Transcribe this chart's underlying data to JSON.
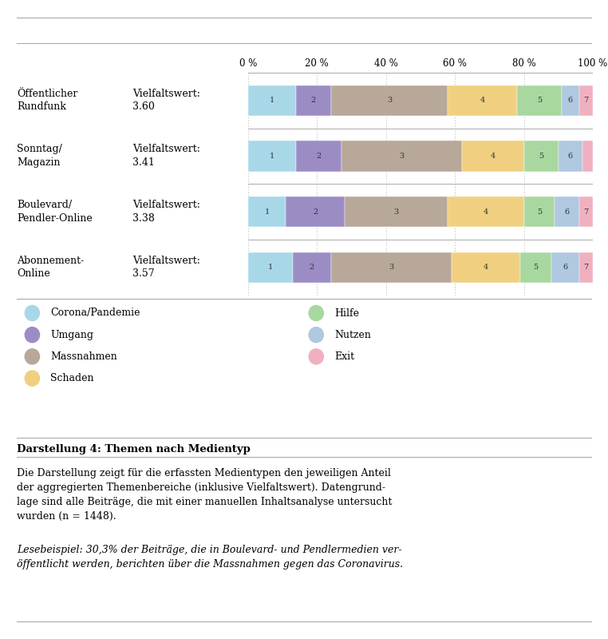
{
  "categories": [
    [
      "Öffentlicher",
      "Rundfunk",
      "Vielfaltswert:",
      "3.60"
    ],
    [
      "Sonntag/",
      "Magazin",
      "Vielfaltswert:",
      "3.41"
    ],
    [
      "Boulevard/",
      "Pendler-Online",
      "Vielfaltswert:",
      "3.38"
    ],
    [
      "Abonnement-",
      "Online",
      "Vielfaltswert:",
      "3.57"
    ]
  ],
  "segments": [
    [
      14.0,
      10.0,
      34.0,
      20.0,
      13.0,
      5.0,
      4.0
    ],
    [
      14.0,
      13.0,
      35.0,
      18.0,
      10.0,
      7.0,
      3.0
    ],
    [
      11.0,
      17.0,
      30.0,
      22.0,
      9.0,
      7.0,
      4.0
    ],
    [
      13.0,
      11.0,
      35.0,
      20.0,
      9.0,
      8.0,
      4.0
    ]
  ],
  "colors": [
    "#a8d8e8",
    "#9b8dc4",
    "#b8a89a",
    "#f0d080",
    "#a8d8a0",
    "#b0c8e0",
    "#f0b0c0"
  ],
  "legend_numbers": [
    "1",
    "2",
    "3",
    "4",
    "5",
    "6",
    "7"
  ],
  "legend_labels": [
    "Corona/Pandemie",
    "Umgang",
    "Massnahmen",
    "Schaden",
    "Hilfe",
    "Nutzen",
    "Exit"
  ],
  "xtick_labels": [
    "0 %",
    "20 %",
    "40 %",
    "60 %",
    "80 %",
    "100 %"
  ],
  "xtick_vals": [
    0,
    20,
    40,
    60,
    80,
    100
  ],
  "bg_color": "#ffffff",
  "caption_title": "Darstellung 4: Themen nach Medientyp",
  "caption_body": "Die Darstellung zeigt für die erfassten Medientypen den jeweiligen Anteil\nder aggregierten Themenbereiche (inklusive Vielfaltswert). Datengrund-\nlage sind alle Beiträge, die mit einer manuellen Inhaltsanalyse untersucht\nwurden (n = 1448).",
  "caption_italic": "Lesebeispiel: 30,3% der Beiträge, die in Boulevard- und Pendlermedien ver-\nöffentlicht werden, berichten über die Massnahmen gegen das Coronavirus."
}
